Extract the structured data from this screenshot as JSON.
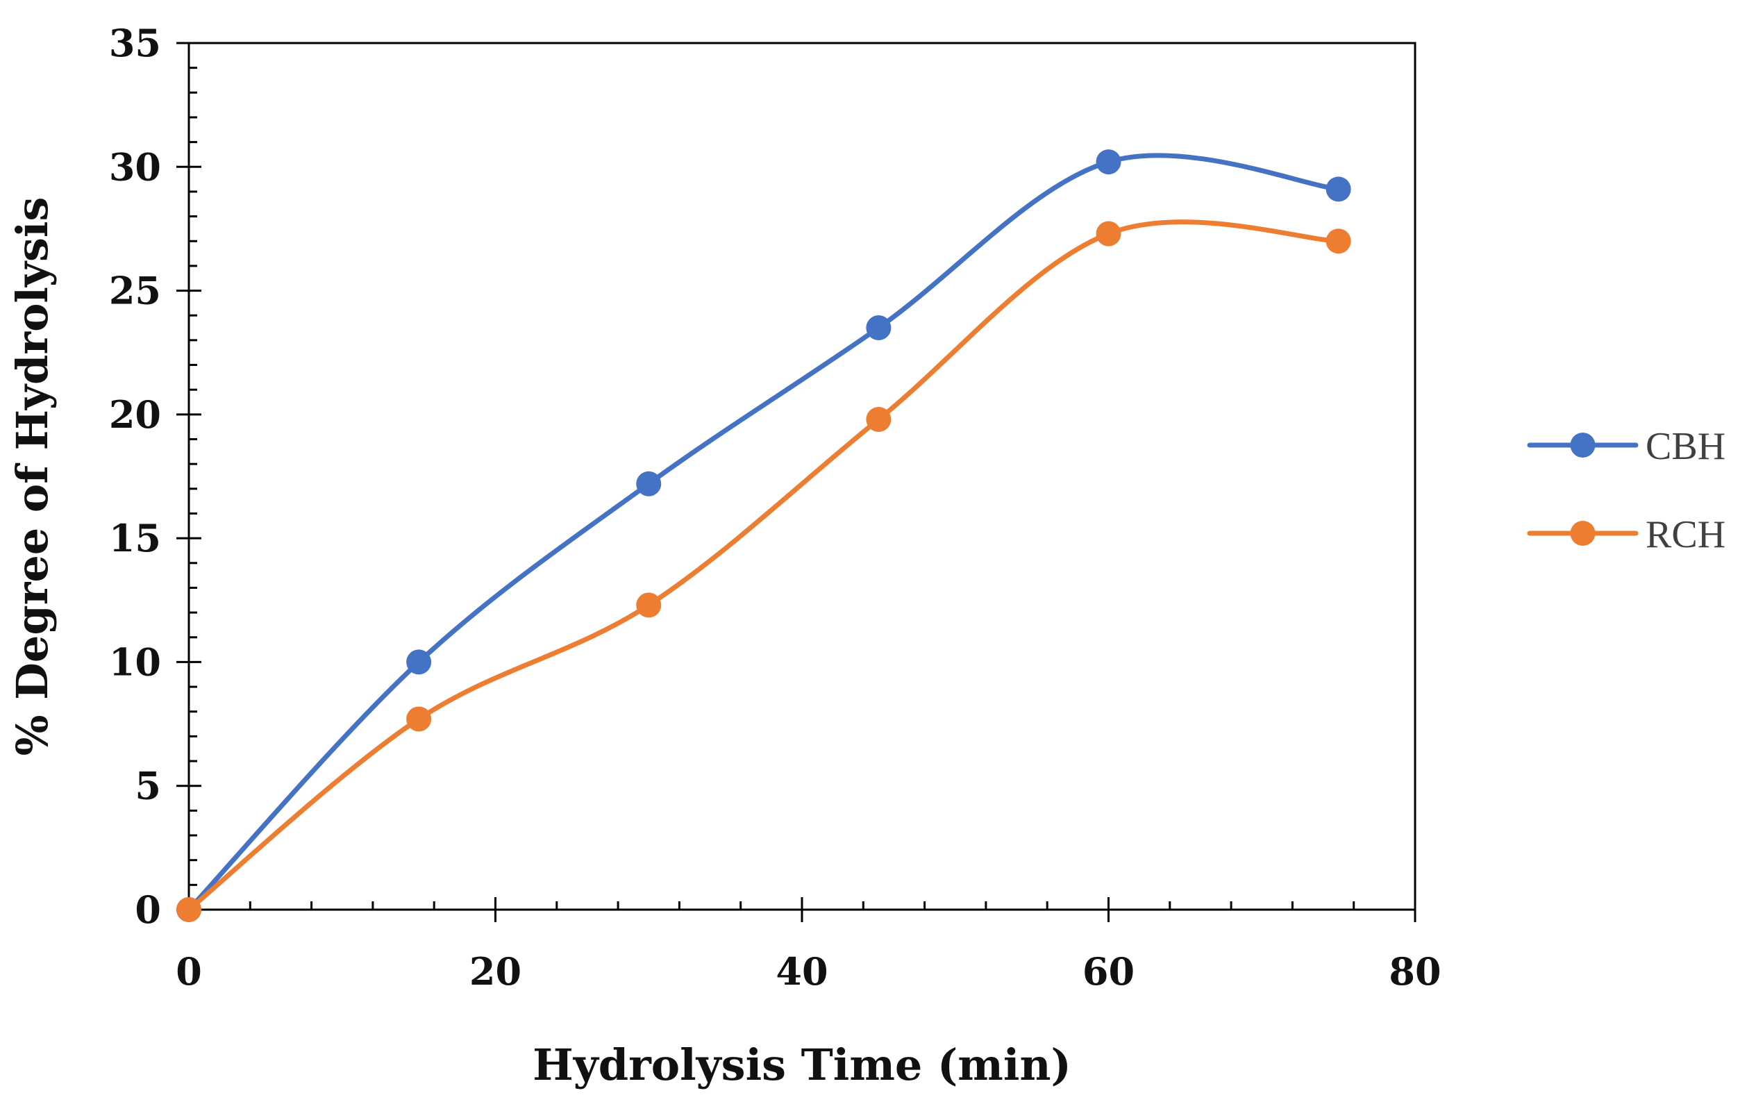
{
  "chart_data": {
    "type": "line",
    "title": "",
    "xlabel": "Hydrolysis Time (min)",
    "ylabel": "% Degree of Hydrolysis",
    "xlim": [
      0,
      80
    ],
    "ylim": [
      0,
      35
    ],
    "x_ticks": [
      0,
      20,
      40,
      60,
      80
    ],
    "y_ticks": [
      0,
      5,
      10,
      15,
      20,
      25,
      30,
      35
    ],
    "x_minor_step": 4,
    "y_minor_step": 1,
    "smooth": true,
    "grid": false,
    "legend_position": "right",
    "series": [
      {
        "name": "CBH",
        "color": "#4472C4",
        "x": [
          0,
          15,
          30,
          45,
          60,
          75
        ],
        "y": [
          0,
          10.0,
          17.2,
          23.5,
          30.2,
          29.1
        ]
      },
      {
        "name": "RCH",
        "color": "#ED7D31",
        "x": [
          0,
          15,
          30,
          45,
          60,
          75
        ],
        "y": [
          0,
          7.7,
          12.3,
          19.8,
          27.3,
          27.0
        ]
      }
    ]
  }
}
